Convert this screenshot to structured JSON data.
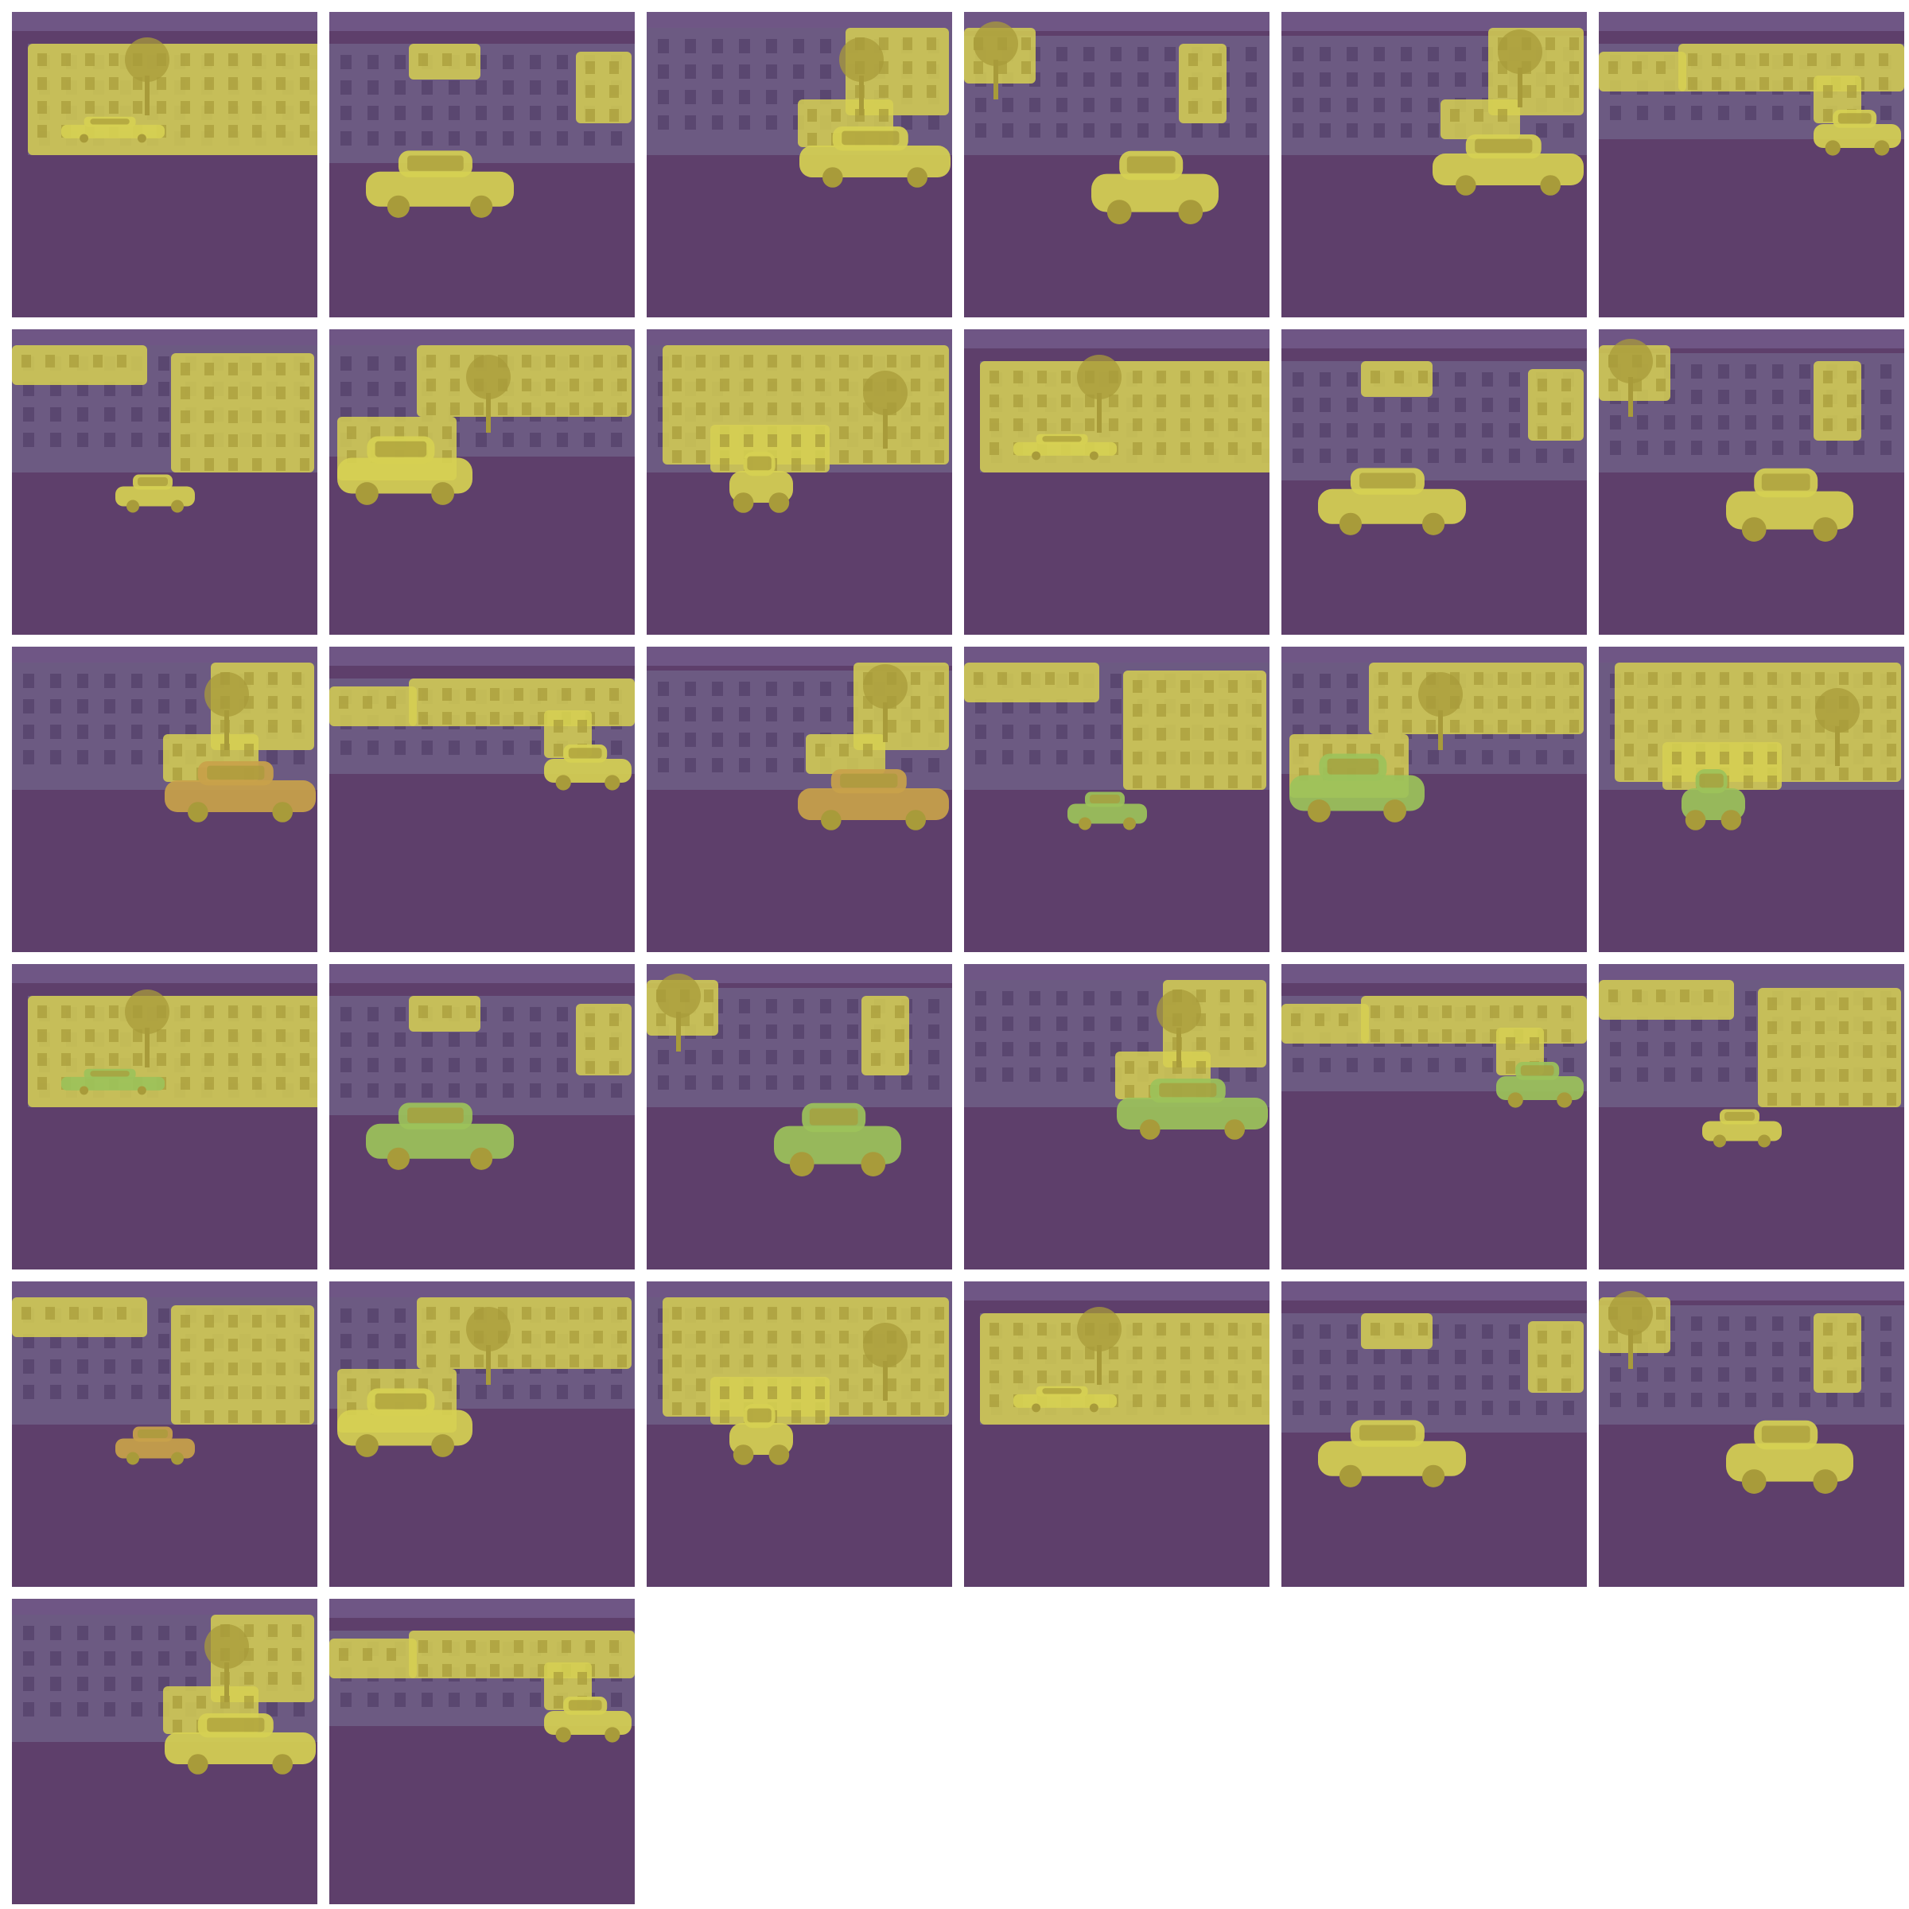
{
  "palette": {
    "background": "#ffffff",
    "road": "#5e3f6b",
    "sky": "#6f5685",
    "building": "#6c5a82",
    "window": "#5a4770",
    "mask": "#d6d052",
    "mask_dark": "#a89b3a",
    "car_green": "#9cc25a",
    "car_orange": "#c9a24a",
    "foliage": "#4a3a5a"
  },
  "grid": {
    "columns": 6,
    "rows": 6,
    "tile_count": 32
  },
  "tiles": [
    {
      "view": 0,
      "car": "yellow"
    },
    {
      "view": 1,
      "car": "yellow"
    },
    {
      "view": 2,
      "car": "yellow"
    },
    {
      "view": 3,
      "car": "yellow"
    },
    {
      "view": 4,
      "car": "yellow"
    },
    {
      "view": 5,
      "car": "yellow"
    },
    {
      "view": 6,
      "car": "yellow"
    },
    {
      "view": 7,
      "car": "yellow"
    },
    {
      "view": 8,
      "car": "yellow"
    },
    {
      "view": 0,
      "car": "yellow"
    },
    {
      "view": 1,
      "car": "yellow"
    },
    {
      "view": 3,
      "car": "yellow"
    },
    {
      "view": 2,
      "car": "orange"
    },
    {
      "view": 5,
      "car": "yellow"
    },
    {
      "view": 4,
      "car": "orange"
    },
    {
      "view": 6,
      "car": "green"
    },
    {
      "view": 7,
      "car": "green"
    },
    {
      "view": 8,
      "car": "green"
    },
    {
      "view": 0,
      "car": "green"
    },
    {
      "view": 1,
      "car": "green"
    },
    {
      "view": 3,
      "car": "green"
    },
    {
      "view": 2,
      "car": "green"
    },
    {
      "view": 5,
      "car": "green"
    },
    {
      "view": 6,
      "car": "yellow"
    },
    {
      "view": 6,
      "car": "orange"
    },
    {
      "view": 7,
      "car": "yellow"
    },
    {
      "view": 8,
      "car": "yellow"
    },
    {
      "view": 0,
      "car": "yellow"
    },
    {
      "view": 1,
      "car": "yellow"
    },
    {
      "view": 3,
      "car": "yellow"
    },
    {
      "view": 2,
      "car": "yellow"
    },
    {
      "view": 5,
      "car": "yellow"
    }
  ]
}
